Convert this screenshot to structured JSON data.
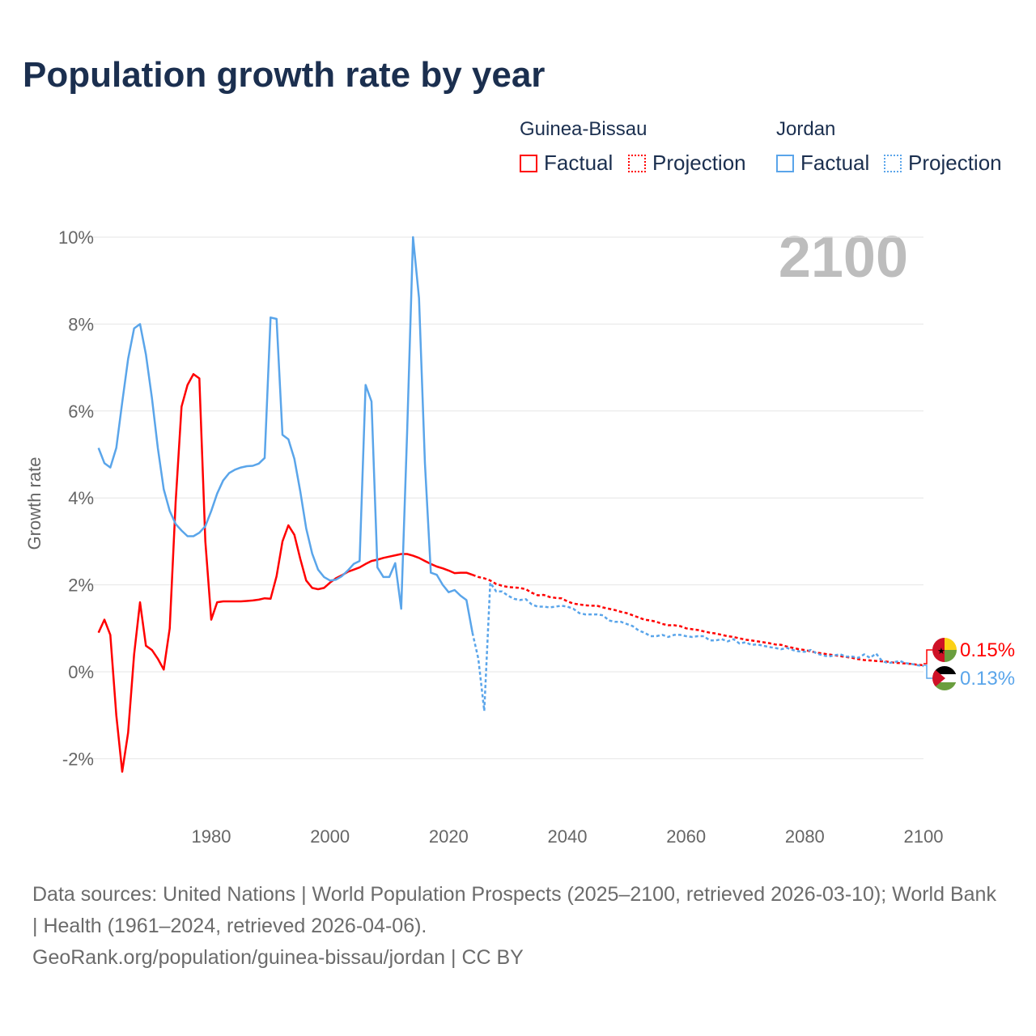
{
  "title": "Population growth rate by year",
  "legend": {
    "groups": [
      {
        "name": "Guinea-Bissau",
        "color": "#ff0000",
        "factual": "Factual",
        "projection": "Projection"
      },
      {
        "name": "Jordan",
        "color": "#5aa5ea",
        "factual": "Factual",
        "projection": "Projection"
      }
    ]
  },
  "year_watermark": "2100",
  "end_labels": {
    "guinea_bissau": "0.15%",
    "jordan": "0.13%"
  },
  "footer": {
    "sources": "Data sources: United Nations | World Population Prospects (2025–2100, retrieved 2026-03-10); World Bank | Health (1961–2024, retrieved 2026-04-06).",
    "link": "GeoRank.org/population/guinea-bissau/jordan | CC BY"
  },
  "chart_data": {
    "type": "line",
    "title": "Population growth rate by year",
    "xlabel": "",
    "ylabel": "Growth rate",
    "xlim": [
      1961,
      2100
    ],
    "ylim": [
      -2.8,
      10.3
    ],
    "xticks": [
      1980,
      2000,
      2020,
      2040,
      2060,
      2080,
      2100
    ],
    "yticks": [
      -2,
      0,
      2,
      4,
      6,
      8,
      10
    ],
    "ytick_labels": [
      "-2%",
      "0%",
      "2%",
      "4%",
      "6%",
      "8%",
      "10%"
    ],
    "grid": true,
    "legend_position": "top-right",
    "series": [
      {
        "name": "Guinea-Bissau Factual",
        "start": 1961,
        "style": "solid",
        "color": "#ff0000",
        "values": [
          0.9,
          1.2,
          0.85,
          -1.0,
          -2.3,
          -1.4,
          0.4,
          1.6,
          0.6,
          0.5,
          0.3,
          0.05,
          1.0,
          3.9,
          6.1,
          6.6,
          6.85,
          6.75,
          3.0,
          1.2,
          1.6,
          1.62,
          1.62,
          1.62,
          1.62,
          1.63,
          1.64,
          1.66,
          1.69,
          1.68,
          2.2,
          3.0,
          3.37,
          3.15,
          2.6,
          2.1,
          1.93,
          1.9,
          1.93,
          2.05,
          2.15,
          2.22,
          2.3,
          2.35,
          2.4,
          2.48,
          2.55,
          2.58,
          2.62,
          2.65,
          2.68,
          2.71,
          2.71,
          2.67,
          2.62,
          2.55,
          2.48,
          2.42,
          2.38,
          2.33,
          2.27,
          2.28,
          2.28,
          2.23
        ]
      },
      {
        "name": "Guinea-Bissau Projection",
        "start": 2024,
        "style": "dotted",
        "color": "#ff0000",
        "values": [
          2.23,
          2.18,
          2.15,
          2.1,
          2.02,
          1.98,
          1.95,
          1.94,
          1.93,
          1.9,
          1.82,
          1.76,
          1.77,
          1.72,
          1.7,
          1.69,
          1.62,
          1.57,
          1.55,
          1.53,
          1.52,
          1.52,
          1.48,
          1.45,
          1.42,
          1.38,
          1.35,
          1.3,
          1.25,
          1.2,
          1.18,
          1.15,
          1.1,
          1.07,
          1.07,
          1.05,
          1.0,
          0.98,
          0.96,
          0.93,
          0.9,
          0.88,
          0.85,
          0.82,
          0.8,
          0.77,
          0.74,
          0.72,
          0.7,
          0.68,
          0.66,
          0.63,
          0.62,
          0.58,
          0.55,
          0.52,
          0.5,
          0.47,
          0.44,
          0.42,
          0.4,
          0.38,
          0.36,
          0.34,
          0.32,
          0.29,
          0.27,
          0.26,
          0.25,
          0.24,
          0.23,
          0.21,
          0.2,
          0.19,
          0.18,
          0.16,
          0.15
        ]
      },
      {
        "name": "Jordan Factual",
        "start": 1961,
        "style": "solid",
        "color": "#5aa5ea",
        "values": [
          5.15,
          4.8,
          4.7,
          5.15,
          6.2,
          7.2,
          7.9,
          8.0,
          7.3,
          6.3,
          5.15,
          4.2,
          3.7,
          3.4,
          3.25,
          3.12,
          3.12,
          3.2,
          3.35,
          3.7,
          4.1,
          4.4,
          4.57,
          4.65,
          4.7,
          4.73,
          4.74,
          4.79,
          4.92,
          8.15,
          8.12,
          5.45,
          5.35,
          4.9,
          4.15,
          3.3,
          2.72,
          2.35,
          2.18,
          2.1,
          2.12,
          2.2,
          2.33,
          2.48,
          2.55,
          6.6,
          6.22,
          2.4,
          2.18,
          2.18,
          2.5,
          1.45,
          5.5,
          10.0,
          8.6,
          4.8,
          2.28,
          2.23,
          2.0,
          1.83,
          1.88,
          1.75,
          1.65,
          0.9
        ]
      },
      {
        "name": "Jordan Projection",
        "start": 2024,
        "style": "dotted",
        "color": "#5aa5ea",
        "values": [
          0.9,
          0.3,
          -0.9,
          2.05,
          1.85,
          1.85,
          1.75,
          1.68,
          1.65,
          1.67,
          1.55,
          1.5,
          1.5,
          1.48,
          1.5,
          1.52,
          1.5,
          1.45,
          1.35,
          1.32,
          1.32,
          1.32,
          1.3,
          1.18,
          1.15,
          1.15,
          1.1,
          1.05,
          0.95,
          0.9,
          0.82,
          0.82,
          0.85,
          0.8,
          0.85,
          0.85,
          0.82,
          0.8,
          0.82,
          0.82,
          0.72,
          0.72,
          0.75,
          0.7,
          0.75,
          0.65,
          0.68,
          0.62,
          0.63,
          0.6,
          0.57,
          0.55,
          0.52,
          0.55,
          0.5,
          0.47,
          0.46,
          0.5,
          0.42,
          0.38,
          0.35,
          0.38,
          0.4,
          0.35,
          0.35,
          0.32,
          0.4,
          0.32,
          0.42,
          0.25,
          0.2,
          0.22,
          0.25,
          0.2,
          0.18,
          0.15,
          0.13
        ]
      }
    ]
  }
}
